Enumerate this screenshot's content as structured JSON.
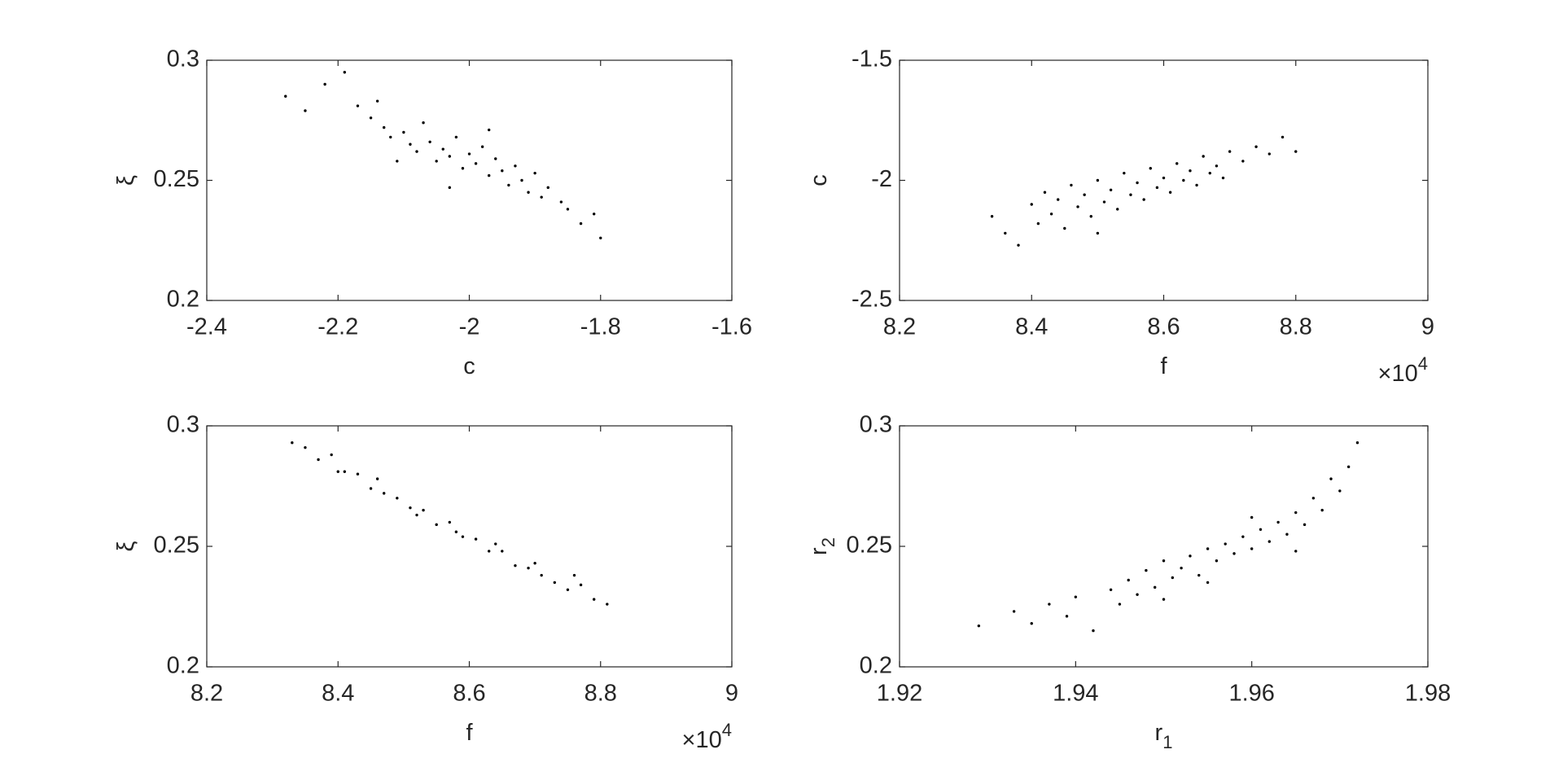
{
  "chart_data": [
    {
      "type": "scatter",
      "xlabel": "c",
      "ylabel": "ξ",
      "color": "#000000",
      "xlim": [
        -2.4,
        -1.6
      ],
      "ylim": [
        0.2,
        0.3
      ],
      "xticks": [
        -2.4,
        -2.2,
        -2,
        -1.8,
        -1.6
      ],
      "yticks": [
        0.2,
        0.25,
        0.3
      ],
      "x": [
        -2.28,
        -2.25,
        -2.22,
        -2.19,
        -2.17,
        -2.15,
        -2.13,
        -2.12,
        -2.1,
        -2.09,
        -2.08,
        -2.07,
        -2.06,
        -2.05,
        -2.04,
        -2.03,
        -2.02,
        -2.01,
        -2.0,
        -1.99,
        -1.98,
        -1.97,
        -1.96,
        -1.95,
        -1.94,
        -1.93,
        -1.92,
        -1.91,
        -1.9,
        -1.89,
        -1.88,
        -1.86,
        -1.85,
        -1.83,
        -1.81,
        -1.8,
        -2.11,
        -2.03,
        -1.97,
        -2.14
      ],
      "y": [
        0.285,
        0.279,
        0.29,
        0.295,
        0.281,
        0.276,
        0.272,
        0.268,
        0.27,
        0.265,
        0.262,
        0.274,
        0.266,
        0.258,
        0.263,
        0.26,
        0.268,
        0.255,
        0.261,
        0.257,
        0.264,
        0.252,
        0.259,
        0.254,
        0.248,
        0.256,
        0.25,
        0.245,
        0.253,
        0.243,
        0.247,
        0.241,
        0.238,
        0.232,
        0.236,
        0.226,
        0.258,
        0.247,
        0.271,
        0.283
      ]
    },
    {
      "type": "scatter",
      "xlabel": "f",
      "ylabel": "c",
      "color": "#000000",
      "x_multiplier": "×10",
      "x_multiplier_exp": "4",
      "xlim": [
        82000,
        90000
      ],
      "ylim": [
        -2.5,
        -1.5
      ],
      "xticks": [
        {
          "value": 82000,
          "label": "8.2"
        },
        {
          "value": 84000,
          "label": "8.4"
        },
        {
          "value": 86000,
          "label": "8.6"
        },
        {
          "value": 88000,
          "label": "8.8"
        },
        {
          "value": 90000,
          "label": "9"
        }
      ],
      "yticks": [
        -2.5,
        -2,
        -1.5
      ],
      "x": [
        83400,
        83600,
        83800,
        84000,
        84100,
        84200,
        84300,
        84400,
        84500,
        84600,
        84700,
        84800,
        84900,
        85000,
        85100,
        85200,
        85300,
        85400,
        85500,
        85600,
        85700,
        85800,
        85900,
        86000,
        86100,
        86200,
        86300,
        86400,
        86500,
        86600,
        86700,
        86800,
        86900,
        87000,
        87200,
        87400,
        87600,
        87800,
        88000,
        85000
      ],
      "y": [
        -2.15,
        -2.22,
        -2.27,
        -2.1,
        -2.18,
        -2.05,
        -2.14,
        -2.08,
        -2.2,
        -2.02,
        -2.11,
        -2.06,
        -2.15,
        -2.0,
        -2.09,
        -2.04,
        -2.12,
        -1.97,
        -2.06,
        -2.01,
        -2.08,
        -1.95,
        -2.03,
        -1.99,
        -2.05,
        -1.93,
        -2.0,
        -1.96,
        -2.02,
        -1.9,
        -1.97,
        -1.94,
        -1.99,
        -1.88,
        -1.92,
        -1.86,
        -1.89,
        -1.82,
        -1.88,
        -2.22
      ]
    },
    {
      "type": "scatter",
      "xlabel": "f",
      "ylabel": "ξ",
      "color": "#000000",
      "x_multiplier": "×10",
      "x_multiplier_exp": "4",
      "xlim": [
        82000,
        90000
      ],
      "ylim": [
        0.2,
        0.3
      ],
      "xticks": [
        {
          "value": 82000,
          "label": "8.2"
        },
        {
          "value": 84000,
          "label": "8.4"
        },
        {
          "value": 86000,
          "label": "8.6"
        },
        {
          "value": 88000,
          "label": "8.8"
        },
        {
          "value": 90000,
          "label": "9"
        }
      ],
      "yticks": [
        0.2,
        0.25,
        0.3
      ],
      "x": [
        83300,
        83500,
        83700,
        83900,
        84100,
        84300,
        84500,
        84700,
        84900,
        85100,
        85300,
        85500,
        85700,
        85900,
        86100,
        86300,
        86500,
        86700,
        86900,
        87100,
        87300,
        87500,
        87700,
        87900,
        88100,
        84000,
        84600,
        85200,
        85800,
        86400,
        87000,
        87600
      ],
      "y": [
        0.293,
        0.291,
        0.286,
        0.288,
        0.281,
        0.28,
        0.274,
        0.272,
        0.27,
        0.266,
        0.265,
        0.259,
        0.26,
        0.254,
        0.253,
        0.248,
        0.248,
        0.242,
        0.241,
        0.238,
        0.235,
        0.232,
        0.234,
        0.228,
        0.226,
        0.281,
        0.278,
        0.263,
        0.256,
        0.251,
        0.243,
        0.238
      ]
    },
    {
      "type": "scatter",
      "xlabel": "r",
      "xlabel_sub": "1",
      "ylabel": "r",
      "ylabel_sub": "2",
      "color": "#000000",
      "xlim": [
        1.92,
        1.98
      ],
      "ylim": [
        0.2,
        0.3
      ],
      "xticks": [
        1.92,
        1.94,
        1.96,
        1.98
      ],
      "yticks": [
        0.2,
        0.25,
        0.3
      ],
      "x": [
        1.929,
        1.933,
        1.935,
        1.937,
        1.939,
        1.94,
        1.942,
        1.944,
        1.945,
        1.946,
        1.947,
        1.948,
        1.949,
        1.95,
        1.951,
        1.952,
        1.953,
        1.954,
        1.955,
        1.956,
        1.957,
        1.958,
        1.959,
        1.96,
        1.961,
        1.962,
        1.963,
        1.964,
        1.965,
        1.966,
        1.967,
        1.968,
        1.969,
        1.97,
        1.971,
        1.972,
        1.955,
        1.96,
        1.95,
        1.965
      ],
      "y": [
        0.217,
        0.223,
        0.218,
        0.226,
        0.221,
        0.229,
        0.215,
        0.232,
        0.226,
        0.236,
        0.23,
        0.24,
        0.233,
        0.244,
        0.237,
        0.241,
        0.246,
        0.238,
        0.249,
        0.244,
        0.251,
        0.247,
        0.254,
        0.249,
        0.257,
        0.252,
        0.26,
        0.255,
        0.264,
        0.259,
        0.27,
        0.265,
        0.278,
        0.273,
        0.283,
        0.293,
        0.235,
        0.262,
        0.228,
        0.248
      ]
    }
  ]
}
